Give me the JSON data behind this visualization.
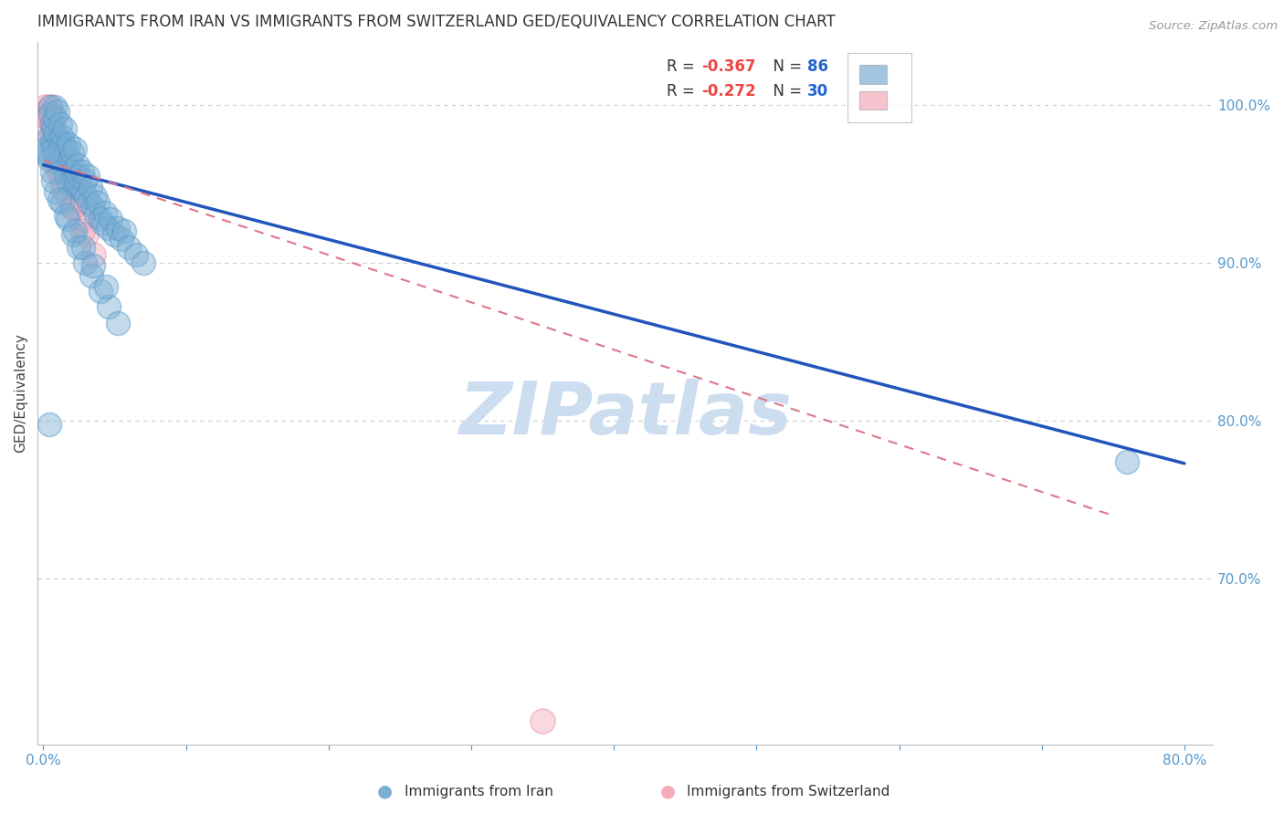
{
  "title": "IMMIGRANTS FROM IRAN VS IMMIGRANTS FROM SWITZERLAND GED/EQUIVALENCY CORRELATION CHART",
  "source": "Source: ZipAtlas.com",
  "ylabel": "GED/Equivalency",
  "xlim": [
    -0.004,
    0.82
  ],
  "ylim": [
    0.595,
    1.04
  ],
  "xticks": [
    0.0,
    0.1,
    0.2,
    0.3,
    0.4,
    0.5,
    0.6,
    0.7,
    0.8
  ],
  "xticklabels": [
    "0.0%",
    "",
    "",
    "",
    "",
    "",
    "",
    "",
    "80.0%"
  ],
  "yticks_right": [
    0.7,
    0.8,
    0.9,
    1.0
  ],
  "yticklabels_right": [
    "70.0%",
    "80.0%",
    "90.0%",
    "100.0%"
  ],
  "legend_blue_r": "R = −0.367",
  "legend_blue_n": "N = 86",
  "legend_pink_r": "R = −0.272",
  "legend_pink_n": "N = 30",
  "blue_color": "#7BAFD4",
  "blue_edge_color": "#5599CC",
  "pink_color": "#F4AABB",
  "pink_edge_color": "#EE8899",
  "trend_blue_color": "#2255BB",
  "trend_pink_color": "#DD7788",
  "watermark_text": "ZIPatlas",
  "watermark_color": "#C5D8EE",
  "blue_scatter_x": [
    0.002,
    0.003,
    0.004,
    0.005,
    0.005,
    0.006,
    0.006,
    0.007,
    0.007,
    0.008,
    0.008,
    0.008,
    0.009,
    0.009,
    0.01,
    0.01,
    0.011,
    0.011,
    0.012,
    0.012,
    0.013,
    0.013,
    0.014,
    0.014,
    0.015,
    0.015,
    0.016,
    0.016,
    0.017,
    0.018,
    0.018,
    0.019,
    0.02,
    0.02,
    0.021,
    0.022,
    0.022,
    0.023,
    0.024,
    0.025,
    0.026,
    0.027,
    0.028,
    0.029,
    0.03,
    0.031,
    0.032,
    0.033,
    0.035,
    0.036,
    0.037,
    0.038,
    0.04,
    0.042,
    0.043,
    0.045,
    0.047,
    0.05,
    0.052,
    0.055,
    0.057,
    0.06,
    0.065,
    0.07,
    0.004,
    0.006,
    0.009,
    0.013,
    0.017,
    0.021,
    0.025,
    0.029,
    0.034,
    0.04,
    0.046,
    0.052,
    0.003,
    0.007,
    0.011,
    0.016,
    0.022,
    0.028,
    0.035,
    0.044,
    0.004,
    0.76
  ],
  "blue_scatter_y": [
    0.972,
    0.968,
    0.98,
    0.999,
    0.994,
    0.988,
    0.976,
    0.971,
    0.985,
    0.999,
    0.992,
    0.975,
    0.968,
    0.982,
    0.996,
    0.97,
    0.978,
    0.965,
    0.988,
    0.972,
    0.98,
    0.963,
    0.975,
    0.96,
    0.968,
    0.985,
    0.955,
    0.972,
    0.96,
    0.975,
    0.95,
    0.965,
    0.958,
    0.97,
    0.952,
    0.96,
    0.972,
    0.948,
    0.962,
    0.955,
    0.948,
    0.958,
    0.945,
    0.952,
    0.942,
    0.955,
    0.938,
    0.948,
    0.935,
    0.942,
    0.93,
    0.938,
    0.928,
    0.925,
    0.932,
    0.922,
    0.928,
    0.918,
    0.922,
    0.915,
    0.92,
    0.91,
    0.905,
    0.9,
    0.965,
    0.958,
    0.945,
    0.938,
    0.928,
    0.918,
    0.91,
    0.9,
    0.892,
    0.882,
    0.872,
    0.862,
    0.97,
    0.952,
    0.94,
    0.93,
    0.92,
    0.91,
    0.898,
    0.885,
    0.798,
    0.774
  ],
  "pink_scatter_x": [
    0.002,
    0.003,
    0.004,
    0.005,
    0.006,
    0.007,
    0.008,
    0.009,
    0.01,
    0.011,
    0.012,
    0.013,
    0.015,
    0.017,
    0.019,
    0.021,
    0.024,
    0.027,
    0.03,
    0.035,
    0.004,
    0.006,
    0.009,
    0.014,
    0.02,
    0.027,
    0.003,
    0.007,
    0.35,
    0.012
  ],
  "pink_scatter_y": [
    0.999,
    0.996,
    0.993,
    0.999,
    0.988,
    0.982,
    0.976,
    0.969,
    0.963,
    0.957,
    0.97,
    0.952,
    0.96,
    0.942,
    0.948,
    0.935,
    0.94,
    0.928,
    0.918,
    0.905,
    0.985,
    0.975,
    0.962,
    0.948,
    0.935,
    0.92,
    0.992,
    0.978,
    0.61,
    0.965
  ],
  "blue_trend_x": [
    0.0,
    0.8
  ],
  "blue_trend_y": [
    0.962,
    0.773
  ],
  "pink_trend_x": [
    0.0,
    0.75
  ],
  "pink_trend_y": [
    0.965,
    0.74
  ],
  "title_fontsize": 12,
  "tick_label_color": "#5599CC",
  "grid_color": "#CCCCCC",
  "legend_r_color": "#EE4444",
  "legend_n_color": "#2266CC"
}
